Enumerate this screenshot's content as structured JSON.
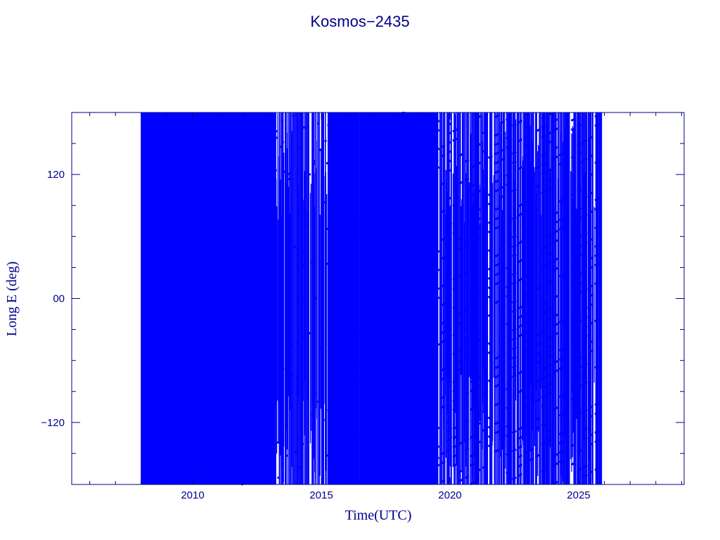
{
  "chart_data": {
    "type": "line",
    "title": "Kosmos−2435",
    "xlabel": "Time(UTC)",
    "ylabel": "Long E (deg)",
    "xlim": [
      2005.3,
      2029.1
    ],
    "ylim": [
      -180,
      180
    ],
    "x_ticks": [
      {
        "value": 2010,
        "label": "2010"
      },
      {
        "value": 2015,
        "label": "2015"
      },
      {
        "value": 2020,
        "label": "2020"
      },
      {
        "value": 2025,
        "label": "2025"
      }
    ],
    "y_ticks": [
      {
        "value": 120,
        "label": "120"
      },
      {
        "value": 0,
        "label": "00"
      },
      {
        "value": -120,
        "label": "−120"
      }
    ],
    "grid": false,
    "series": [
      {
        "color": "#0000ff",
        "start_year": 2008.0,
        "end_year": 2025.9,
        "dense_segments": [
          [
            2008.0,
            2013.2
          ],
          [
            2015.3,
            2019.5
          ]
        ],
        "drift_rate_deg_per_year": 14
      }
    ],
    "colors": {
      "axis": "#00008b",
      "data": "#0000ff",
      "background": "#ffffff"
    }
  }
}
